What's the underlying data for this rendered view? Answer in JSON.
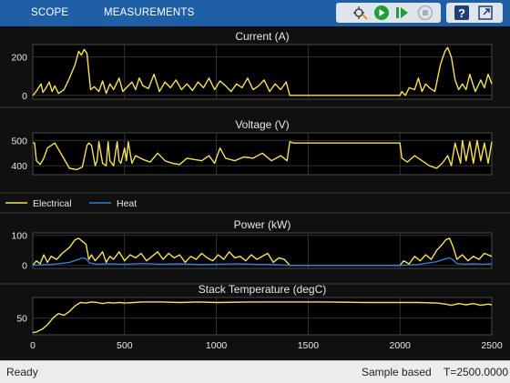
{
  "toolbar": {
    "tabs": [
      "SCOPE",
      "MEASUREMENTS"
    ],
    "icons": [
      "signal-select-icon",
      "run-icon",
      "step-forward-icon",
      "stop-icon",
      "help-icon",
      "undock-icon"
    ]
  },
  "colors": {
    "electrical": "#f5e15a",
    "heat": "#2f7fd2",
    "background": "#101010",
    "panel": "#000000",
    "toolbar": "#1f5fa6"
  },
  "chart_data": [
    {
      "type": "line",
      "title": "Current (A)",
      "xlim": [
        0,
        2500
      ],
      "ylim": [
        -20,
        265
      ],
      "yticks": [
        0,
        200
      ],
      "series": [
        {
          "color": "#f5e15a",
          "x": [
            0,
            10,
            25,
            45,
            55,
            70,
            90,
            105,
            120,
            140,
            170,
            200,
            230,
            250,
            265,
            280,
            295,
            305,
            315,
            335,
            360,
            380,
            400,
            420,
            440,
            470,
            490,
            510,
            540,
            560,
            580,
            600,
            630,
            660,
            690,
            720,
            750,
            780,
            810,
            840,
            870,
            900,
            930,
            960,
            990,
            1020,
            1050,
            1080,
            1110,
            1140,
            1170,
            1200,
            1230,
            1260,
            1290,
            1320,
            1350,
            1380,
            1400,
            1420,
            1600,
            1800,
            1960,
            2000,
            2010,
            2030,
            2050,
            2080,
            2100,
            2120,
            2140,
            2160,
            2190,
            2220,
            2245,
            2260,
            2280,
            2300,
            2320,
            2340,
            2360,
            2380,
            2410,
            2440,
            2460,
            2480,
            2500
          ],
          "y": [
            0,
            10,
            30,
            60,
            15,
            35,
            70,
            20,
            50,
            10,
            30,
            90,
            160,
            230,
            210,
            240,
            220,
            120,
            30,
            45,
            20,
            75,
            10,
            60,
            30,
            90,
            20,
            40,
            70,
            30,
            90,
            50,
            35,
            110,
            20,
            70,
            40,
            80,
            30,
            60,
            25,
            70,
            40,
            90,
            30,
            75,
            50,
            20,
            60,
            40,
            90,
            30,
            50,
            80,
            20,
            60,
            30,
            70,
            0,
            0,
            0,
            0,
            0,
            0,
            20,
            0,
            40,
            30,
            90,
            20,
            60,
            40,
            20,
            160,
            230,
            250,
            200,
            80,
            30,
            60,
            30,
            110,
            20,
            80,
            40,
            110,
            60
          ]
        }
      ]
    },
    {
      "type": "line",
      "title": "Voltage (V)",
      "xlim": [
        0,
        2500
      ],
      "ylim": [
        365,
        530
      ],
      "yticks": [
        400,
        500
      ],
      "series": [
        {
          "color": "#f5e15a",
          "x": [
            0,
            10,
            20,
            40,
            60,
            80,
            120,
            160,
            200,
            240,
            270,
            295,
            305,
            320,
            340,
            350,
            360,
            380,
            400,
            410,
            420,
            440,
            460,
            470,
            480,
            500,
            510,
            520,
            540,
            560,
            600,
            640,
            680,
            720,
            760,
            800,
            840,
            880,
            920,
            960,
            990,
            1020,
            1050,
            1100,
            1150,
            1200,
            1250,
            1300,
            1350,
            1385,
            1400,
            1420,
            1600,
            1800,
            2000,
            2010,
            2040,
            2080,
            2120,
            2160,
            2200,
            2230,
            2260,
            2280,
            2300,
            2330,
            2340,
            2360,
            2380,
            2400,
            2420,
            2440,
            2460,
            2480,
            2500
          ],
          "y": [
            490,
            490,
            420,
            405,
            430,
            470,
            490,
            440,
            390,
            385,
            395,
            480,
            490,
            480,
            400,
            420,
            495,
            410,
            400,
            495,
            420,
            400,
            495,
            420,
            410,
            470,
            420,
            495,
            410,
            440,
            425,
            415,
            450,
            420,
            410,
            405,
            430,
            425,
            420,
            440,
            410,
            470,
            430,
            420,
            435,
            430,
            450,
            420,
            440,
            420,
            495,
            490,
            490,
            490,
            490,
            430,
            415,
            440,
            420,
            400,
            390,
            410,
            440,
            400,
            490,
            410,
            500,
            420,
            495,
            410,
            500,
            420,
            490,
            410,
            495
          ]
        }
      ]
    },
    {
      "type": "line",
      "title": "Power (kW)",
      "xlim": [
        0,
        2500
      ],
      "ylim": [
        -10,
        108
      ],
      "yticks": [
        0,
        100
      ],
      "legend": {
        "position": "top-left",
        "entries": [
          "Electrical",
          "Heat"
        ]
      },
      "series": [
        {
          "name": "Electrical",
          "color": "#f5e15a",
          "x": [
            0,
            20,
            40,
            60,
            80,
            100,
            130,
            160,
            200,
            230,
            250,
            270,
            290,
            305,
            320,
            340,
            360,
            380,
            400,
            420,
            440,
            470,
            500,
            530,
            560,
            590,
            620,
            650,
            680,
            710,
            740,
            770,
            800,
            830,
            860,
            890,
            920,
            950,
            980,
            1010,
            1040,
            1070,
            1100,
            1130,
            1160,
            1190,
            1220,
            1250,
            1280,
            1310,
            1340,
            1370,
            1400,
            1420,
            1600,
            1800,
            1960,
            2000,
            2020,
            2050,
            2080,
            2110,
            2140,
            2170,
            2200,
            2230,
            2250,
            2270,
            2290,
            2310,
            2340,
            2370,
            2400,
            2430,
            2460,
            2500
          ],
          "y": [
            0,
            15,
            5,
            35,
            10,
            30,
            20,
            40,
            60,
            85,
            90,
            80,
            70,
            20,
            35,
            15,
            30,
            45,
            10,
            30,
            20,
            45,
            15,
            35,
            25,
            40,
            15,
            30,
            45,
            20,
            40,
            25,
            35,
            10,
            30,
            20,
            40,
            25,
            15,
            35,
            20,
            45,
            25,
            30,
            15,
            35,
            20,
            30,
            40,
            10,
            25,
            20,
            0,
            0,
            0,
            0,
            0,
            0,
            15,
            5,
            30,
            15,
            35,
            20,
            50,
            70,
            85,
            90,
            60,
            20,
            35,
            15,
            30,
            20,
            40,
            30
          ]
        },
        {
          "name": "Heat",
          "color": "#2f7fd2",
          "x": [
            0,
            50,
            100,
            150,
            200,
            250,
            270,
            290,
            310,
            350,
            400,
            500,
            600,
            700,
            800,
            900,
            1000,
            1100,
            1200,
            1300,
            1400,
            1600,
            1800,
            2000,
            2100,
            2200,
            2250,
            2270,
            2290,
            2310,
            2350,
            2400,
            2450,
            2500
          ],
          "y": [
            0,
            2,
            3,
            6,
            10,
            20,
            25,
            22,
            8,
            4,
            5,
            4,
            6,
            4,
            5,
            3,
            4,
            5,
            4,
            3,
            0,
            0,
            0,
            0,
            3,
            12,
            22,
            25,
            18,
            6,
            4,
            5,
            4,
            5
          ]
        }
      ]
    },
    {
      "type": "line",
      "title": "Stack Temperature (degC)",
      "xlim": [
        0,
        2500
      ],
      "ylim": [
        20,
        87
      ],
      "yticks": [
        50
      ],
      "xticks": [
        0,
        500,
        1000,
        1500,
        2000,
        2500
      ],
      "series": [
        {
          "color": "#f5e15a",
          "x": [
            0,
            20,
            50,
            80,
            110,
            140,
            170,
            200,
            230,
            260,
            290,
            320,
            350,
            380,
            410,
            440,
            470,
            500,
            550,
            600,
            700,
            800,
            900,
            1000,
            1200,
            1400,
            1600,
            1800,
            2000,
            2100,
            2200,
            2250,
            2280,
            2320,
            2360,
            2400,
            2440,
            2480,
            2500
          ],
          "y": [
            24,
            25,
            30,
            38,
            50,
            58,
            55,
            62,
            72,
            78,
            77,
            79,
            78,
            76,
            78,
            77,
            78,
            77,
            78,
            79,
            79,
            78,
            79,
            78,
            79,
            79,
            79,
            78,
            78,
            78,
            77,
            75,
            73,
            76,
            74,
            76,
            73,
            75,
            74
          ]
        }
      ]
    }
  ],
  "status": {
    "left": "Ready",
    "mode": "Sample based",
    "time": "T=2500.0000"
  }
}
